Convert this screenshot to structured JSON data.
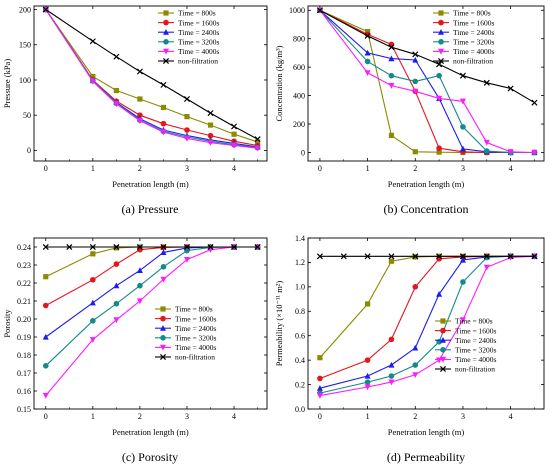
{
  "chart_data": [
    {
      "type": "line",
      "caption": "(a) Pressure",
      "xlabel": "Penetration length (m)",
      "ylabel": "Pressure (kPa)",
      "xlim": [
        -0.25,
        4.7
      ],
      "ylim": [
        -15,
        205
      ],
      "xticks": [
        0,
        1,
        2,
        3,
        4
      ],
      "yticks": [
        0,
        50,
        100,
        150,
        200
      ],
      "legend": "top-right",
      "series": [
        {
          "name": "Time = 800s",
          "color": "#8b8b00",
          "marker": "square",
          "x": [
            0,
            1,
            1.5,
            2,
            2.5,
            3,
            3.5,
            4,
            4.5
          ],
          "y": [
            200,
            105,
            85,
            73,
            61,
            48,
            36,
            23,
            12
          ]
        },
        {
          "name": "Time = 1600s",
          "color": "#e8141c",
          "marker": "circle",
          "x": [
            0,
            1,
            1.5,
            2,
            2.5,
            3,
            3.5,
            4,
            4.5
          ],
          "y": [
            200,
            100,
            70,
            50,
            38,
            29,
            21,
            13,
            7
          ]
        },
        {
          "name": "Time = 2400s",
          "color": "#1c1cf0",
          "marker": "triangle",
          "x": [
            0,
            1,
            1.5,
            2,
            2.5,
            3,
            3.5,
            4,
            4.5
          ],
          "y": [
            200,
            99,
            68,
            45,
            29,
            21,
            15,
            10,
            5
          ]
        },
        {
          "name": "Time = 3200s",
          "color": "#158a8a",
          "marker": "circle",
          "x": [
            0,
            1,
            1.5,
            2,
            2.5,
            3,
            3.5,
            4,
            4.5
          ],
          "y": [
            200,
            99,
            67,
            43,
            27,
            19,
            13,
            8,
            4
          ]
        },
        {
          "name": "Time = 4000s",
          "color": "#ff1aff",
          "marker": "triangle-down",
          "x": [
            0,
            1,
            1.5,
            2,
            2.5,
            3,
            3.5,
            4,
            4.5
          ],
          "y": [
            200,
            98,
            66,
            42,
            26,
            17,
            11,
            7,
            3
          ]
        },
        {
          "name": "non-filtration",
          "color": "#000000",
          "marker": "cross",
          "x": [
            0,
            1,
            1.5,
            2,
            2.5,
            3,
            3.5,
            4,
            4.5
          ],
          "y": [
            200,
            155,
            133,
            112,
            93,
            73,
            53,
            34,
            16
          ]
        }
      ]
    },
    {
      "type": "line",
      "caption": "(b) Concentration",
      "xlabel": "Penetration length (m)",
      "ylabel": "Concentration (kg/m³)",
      "xlim": [
        -0.25,
        4.7
      ],
      "ylim": [
        -60,
        1030
      ],
      "xticks": [
        0,
        1,
        2,
        3,
        4
      ],
      "yticks": [
        0,
        200,
        400,
        600,
        800,
        1000
      ],
      "legend": "top-right",
      "series": [
        {
          "name": "Time = 800s",
          "color": "#8b8b00",
          "marker": "square",
          "x": [
            0,
            1,
            1.5,
            2,
            2.5,
            3,
            3.5,
            4,
            4.5
          ],
          "y": [
            1000,
            850,
            120,
            5,
            2,
            0,
            0,
            0,
            0
          ]
        },
        {
          "name": "Time = 1600s",
          "color": "#e8141c",
          "marker": "circle",
          "x": [
            0,
            1,
            1.5,
            2,
            2.5,
            3,
            3.5,
            4,
            4.5
          ],
          "y": [
            1000,
            830,
            760,
            430,
            30,
            5,
            0,
            0,
            0
          ]
        },
        {
          "name": "Time = 2400s",
          "color": "#1c1cf0",
          "marker": "triangle",
          "x": [
            0,
            1,
            1.5,
            2,
            2.5,
            3,
            3.5,
            4,
            4.5
          ],
          "y": [
            1000,
            700,
            660,
            650,
            380,
            25,
            5,
            0,
            0
          ]
        },
        {
          "name": "Time = 3200s",
          "color": "#158a8a",
          "marker": "circle",
          "x": [
            0,
            1,
            1.5,
            2,
            2.5,
            3,
            3.5,
            4,
            4.5
          ],
          "y": [
            1000,
            640,
            540,
            500,
            540,
            180,
            10,
            0,
            0
          ]
        },
        {
          "name": "Time = 4000s",
          "color": "#ff1aff",
          "marker": "triangle-down",
          "x": [
            0,
            1,
            1.5,
            2,
            2.5,
            3,
            3.5,
            4,
            4.5
          ],
          "y": [
            1000,
            560,
            470,
            430,
            380,
            360,
            70,
            5,
            0
          ]
        },
        {
          "name": "non-filtration",
          "color": "#000000",
          "marker": "cross",
          "x": [
            0,
            1,
            1.5,
            2,
            2.5,
            3,
            3.5,
            4,
            4.5
          ],
          "y": [
            1000,
            820,
            740,
            690,
            620,
            540,
            490,
            450,
            350
          ]
        }
      ]
    },
    {
      "type": "line",
      "caption": "(c) Porosity",
      "xlabel": "Penetration length (m)",
      "ylabel": "Porosity",
      "xlim": [
        -0.25,
        4.7
      ],
      "ylim": [
        0.15,
        0.245
      ],
      "xticks": [
        0,
        1,
        2,
        3,
        4
      ],
      "yticks": [
        0.15,
        0.16,
        0.17,
        0.18,
        0.19,
        0.2,
        0.21,
        0.22,
        0.23,
        0.24
      ],
      "ytick_labels": [
        "0.15",
        "0.16",
        "0.17",
        "0.18",
        "0.19",
        "0.20",
        "0.21",
        "0.22",
        "0.23",
        "0.24"
      ],
      "legend": "bottom-right",
      "series": [
        {
          "name": "Time = 800s",
          "color": "#8b8b00",
          "marker": "square",
          "x": [
            0,
            1,
            1.5,
            2,
            2.5,
            3,
            3.5,
            4,
            4.5
          ],
          "y": [
            0.2235,
            0.2362,
            0.2395,
            0.24,
            0.24,
            0.24,
            0.24,
            0.24,
            0.24
          ]
        },
        {
          "name": "Time = 1600s",
          "color": "#e8141c",
          "marker": "circle",
          "x": [
            0,
            1,
            1.5,
            2,
            2.5,
            3,
            3.5,
            4,
            4.5
          ],
          "y": [
            0.2075,
            0.2218,
            0.2305,
            0.2385,
            0.2398,
            0.24,
            0.24,
            0.24,
            0.24
          ]
        },
        {
          "name": "Time = 2400s",
          "color": "#1c1cf0",
          "marker": "triangle",
          "x": [
            0,
            1,
            1.5,
            2,
            2.5,
            3,
            3.5,
            4,
            4.5
          ],
          "y": [
            0.19,
            0.209,
            0.2185,
            0.227,
            0.237,
            0.2395,
            0.24,
            0.24,
            0.24
          ]
        },
        {
          "name": "Time = 3200s",
          "color": "#158a8a",
          "marker": "circle",
          "x": [
            0,
            1,
            1.5,
            2,
            2.5,
            3,
            3.5,
            4,
            4.5
          ],
          "y": [
            0.174,
            0.199,
            0.2085,
            0.2185,
            0.229,
            0.238,
            0.2398,
            0.24,
            0.24
          ]
        },
        {
          "name": "Time = 4000s",
          "color": "#ff1aff",
          "marker": "triangle-down",
          "x": [
            0,
            1,
            1.5,
            2,
            2.5,
            3,
            3.5,
            4,
            4.5
          ],
          "y": [
            0.1575,
            0.1885,
            0.1995,
            0.21,
            0.222,
            0.233,
            0.2385,
            0.24,
            0.24
          ]
        },
        {
          "name": "non-filtration",
          "color": "#000000",
          "marker": "cross",
          "x": [
            0,
            0.5,
            1,
            1.5,
            2,
            2.5,
            3,
            3.5,
            4,
            4.5
          ],
          "y": [
            0.24,
            0.24,
            0.24,
            0.24,
            0.24,
            0.24,
            0.24,
            0.24,
            0.24,
            0.24
          ]
        }
      ]
    },
    {
      "type": "line",
      "caption": "(d) Permeability",
      "xlabel": "Penetration length (m)",
      "ylabel": "Permeability (×10⁻¹¹ m²)",
      "xlim": [
        -0.25,
        4.7
      ],
      "ylim": [
        0.0,
        1.4
      ],
      "xticks": [
        0,
        1,
        2,
        3,
        4
      ],
      "yticks": [
        0.0,
        0.2,
        0.4,
        0.6,
        0.8,
        1.0,
        1.2,
        1.4
      ],
      "ytick_labels": [
        "0.0",
        "0.2",
        "0.4",
        "0.6",
        "0.8",
        "1.0",
        "1.2",
        "1.4"
      ],
      "legend": "bottom-right",
      "series": [
        {
          "name": "Time = 800s",
          "color": "#8b8b00",
          "marker": "square",
          "x": [
            0,
            1,
            1.5,
            2,
            2.5,
            3,
            3.5,
            4,
            4.5
          ],
          "y": [
            0.42,
            0.86,
            1.21,
            1.245,
            1.25,
            1.25,
            1.25,
            1.25,
            1.25
          ]
        },
        {
          "name": "Time = 1600s",
          "color": "#e8141c",
          "marker": "circle",
          "x": [
            0,
            1,
            1.5,
            2,
            2.5,
            3,
            3.5,
            4,
            4.5
          ],
          "y": [
            0.25,
            0.4,
            0.57,
            1.0,
            1.23,
            1.245,
            1.25,
            1.25,
            1.25
          ]
        },
        {
          "name": "Time = 2400s",
          "color": "#1c1cf0",
          "marker": "triangle",
          "x": [
            0,
            1,
            1.5,
            2,
            2.5,
            3,
            3.5,
            4,
            4.5
          ],
          "y": [
            0.17,
            0.27,
            0.36,
            0.5,
            0.94,
            1.22,
            1.245,
            1.25,
            1.25
          ]
        },
        {
          "name": "Time = 3200s",
          "color": "#158a8a",
          "marker": "circle",
          "x": [
            0,
            1,
            1.5,
            2,
            2.5,
            3,
            3.5,
            4,
            4.5
          ],
          "y": [
            0.13,
            0.22,
            0.27,
            0.36,
            0.55,
            1.04,
            1.24,
            1.25,
            1.25
          ]
        },
        {
          "name": "Time = 4000s",
          "color": "#ff1aff",
          "marker": "triangle-down",
          "x": [
            0,
            1,
            1.5,
            2,
            2.5,
            3,
            3.5,
            4,
            4.5
          ],
          "y": [
            0.11,
            0.18,
            0.22,
            0.28,
            0.4,
            0.73,
            1.16,
            1.24,
            1.25
          ]
        },
        {
          "name": "non-filtration",
          "color": "#000000",
          "marker": "cross",
          "x": [
            0,
            0.5,
            1,
            1.5,
            2,
            2.5,
            3,
            3.5,
            4,
            4.5
          ],
          "y": [
            1.25,
            1.25,
            1.25,
            1.25,
            1.25,
            1.25,
            1.25,
            1.25,
            1.25,
            1.25
          ]
        }
      ]
    }
  ]
}
